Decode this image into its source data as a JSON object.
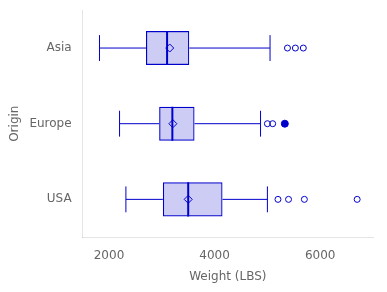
{
  "chart_data": {
    "type": "box",
    "orientation": "horizontal",
    "xlabel": "Weight (LBS)",
    "ylabel": "Origin",
    "categories": [
      "Asia",
      "Europe",
      "USA"
    ],
    "xlim": [
      1500,
      7000
    ],
    "xticks": [
      2000,
      4000,
      6000
    ],
    "grid": false,
    "color": "#0000cc",
    "whislo": [
      1820,
      2200,
      2320
    ],
    "q1": [
      2700,
      2950,
      3020
    ],
    "med": [
      3100,
      3200,
      3500
    ],
    "q3": [
      3520,
      3620,
      4150
    ],
    "whishi": [
      5050,
      4870,
      5000
    ],
    "mean": [
      3150,
      3210,
      3500
    ],
    "fliers_open": [
      [
        5380,
        5530,
        5680
      ],
      [
        5000,
        5100
      ],
      [
        5200,
        5400,
        5700,
        6700
      ]
    ],
    "fliers_filled": [
      [],
      [
        5330
      ],
      []
    ]
  }
}
